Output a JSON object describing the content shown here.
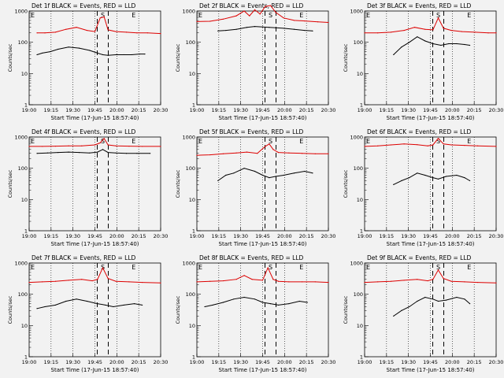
{
  "chart_data": [
    {
      "type": "line",
      "title": "Det 1f BLACK = Events, RED = LLD",
      "xlabel": "Start Time (17-Jun-15 18:57:40)",
      "ylabel": "Counts/sec",
      "yscale": "log",
      "ylim": [
        1,
        1000
      ],
      "x_ticks": [
        "19:00",
        "19:15",
        "19:30",
        "19:45",
        "20:00",
        "20:15",
        "20:30"
      ],
      "y_ticks": [
        "1",
        "10",
        "100",
        "1000"
      ],
      "markers": {
        "left": "E",
        "mid": "S",
        "right": "E"
      },
      "series": [
        {
          "color": "#000000",
          "x": [
            0.06,
            0.1,
            0.16,
            0.22,
            0.3,
            0.38,
            0.46,
            0.52,
            0.56,
            0.6,
            0.66,
            0.72,
            0.78,
            0.84,
            0.88
          ],
          "y": [
            40,
            45,
            50,
            60,
            70,
            65,
            55,
            45,
            40,
            38,
            40,
            40,
            40,
            42,
            42
          ]
        },
        {
          "color": "#dd0000",
          "x": [
            0.06,
            0.12,
            0.2,
            0.28,
            0.36,
            0.44,
            0.5,
            0.54,
            0.57,
            0.6,
            0.66,
            0.74,
            0.82,
            0.9,
            1.0
          ],
          "y": [
            200,
            200,
            210,
            260,
            300,
            240,
            220,
            600,
            650,
            250,
            220,
            210,
            200,
            200,
            190
          ]
        }
      ]
    },
    {
      "type": "line",
      "title": "Det 2f BLACK = Events, RED = LLD",
      "xlabel": "Start Time (17-Jun-15 18:57:40)",
      "ylabel": "Counts/sec",
      "yscale": "log",
      "ylim": [
        1,
        1000
      ],
      "x_ticks": [
        "19:00",
        "19:15",
        "19:30",
        "19:45",
        "20:00",
        "20:15",
        "20:30"
      ],
      "y_ticks": [
        "1",
        "10",
        "100",
        "1000"
      ],
      "markers": {
        "left": "E",
        "mid": "S",
        "right": "E"
      },
      "series": [
        {
          "color": "#000000",
          "x": [
            0.16,
            0.22,
            0.3,
            0.38,
            0.44,
            0.5,
            0.55,
            0.6,
            0.66,
            0.74,
            0.82,
            0.88
          ],
          "y": [
            230,
            240,
            260,
            300,
            320,
            310,
            300,
            290,
            280,
            260,
            240,
            230
          ]
        },
        {
          "color": "#dd0000",
          "x": [
            0.0,
            0.1,
            0.2,
            0.3,
            0.36,
            0.4,
            0.44,
            0.48,
            0.52,
            0.56,
            0.6,
            0.66,
            0.74,
            0.82,
            0.92,
            1.0
          ],
          "y": [
            460,
            470,
            550,
            700,
            1000,
            700,
            1100,
            800,
            1400,
            1500,
            900,
            600,
            500,
            480,
            450,
            430
          ]
        }
      ]
    },
    {
      "type": "line",
      "title": "Det 3f BLACK = Events, RED = LLD",
      "xlabel": "Start Time (17-Jun-15 18:57:40)",
      "ylabel": "Counts/sec",
      "yscale": "log",
      "ylim": [
        1,
        1000
      ],
      "x_ticks": [
        "19:00",
        "19:15",
        "19:30",
        "19:45",
        "20:00",
        "20:15",
        "20:30"
      ],
      "y_ticks": [
        "1",
        "10",
        "100",
        "1000"
      ],
      "markers": {
        "left": "E",
        "mid": "S",
        "right": "E"
      },
      "series": [
        {
          "color": "#000000",
          "x": [
            0.22,
            0.28,
            0.34,
            0.4,
            0.46,
            0.52,
            0.58,
            0.64,
            0.7,
            0.76,
            0.8
          ],
          "y": [
            40,
            70,
            100,
            150,
            110,
            90,
            80,
            90,
            90,
            85,
            80
          ]
        },
        {
          "color": "#dd0000",
          "x": [
            0.0,
            0.1,
            0.2,
            0.3,
            0.38,
            0.46,
            0.52,
            0.56,
            0.6,
            0.66,
            0.74,
            0.84,
            0.94,
            1.0
          ],
          "y": [
            200,
            200,
            210,
            240,
            300,
            260,
            250,
            600,
            280,
            240,
            220,
            210,
            200,
            200
          ]
        }
      ]
    },
    {
      "type": "line",
      "title": "Det 4f BLACK = Events, RED = LLD",
      "xlabel": "Start Time (17-Jun-15 18:57:40)",
      "ylabel": "Counts/sec",
      "yscale": "log",
      "ylim": [
        1,
        1000
      ],
      "x_ticks": [
        "19:00",
        "19:15",
        "19:30",
        "19:45",
        "20:00",
        "20:15",
        "20:30"
      ],
      "y_ticks": [
        "1",
        "10",
        "100",
        "1000"
      ],
      "markers": {
        "left": "E",
        "mid": "S",
        "right": "E"
      },
      "series": [
        {
          "color": "#000000",
          "x": [
            0.06,
            0.14,
            0.22,
            0.3,
            0.38,
            0.46,
            0.52,
            0.56,
            0.6,
            0.66,
            0.74,
            0.82,
            0.92
          ],
          "y": [
            300,
            310,
            320,
            330,
            320,
            310,
            330,
            400,
            320,
            310,
            300,
            300,
            300
          ]
        },
        {
          "color": "#dd0000",
          "x": [
            0.0,
            0.1,
            0.2,
            0.3,
            0.4,
            0.5,
            0.54,
            0.57,
            0.6,
            0.66,
            0.76,
            0.86,
            1.0
          ],
          "y": [
            500,
            500,
            510,
            520,
            520,
            560,
            650,
            900,
            560,
            520,
            510,
            500,
            500
          ]
        }
      ]
    },
    {
      "type": "line",
      "title": "Det 5f BLACK = Events, RED = LLD",
      "xlabel": "Start Time (17-Jun-15 18:57:40)",
      "ylabel": "Counts/sec",
      "yscale": "log",
      "ylim": [
        1,
        1000
      ],
      "x_ticks": [
        "19:00",
        "19:15",
        "19:30",
        "19:45",
        "20:00",
        "20:15",
        "20:30"
      ],
      "y_ticks": [
        "1",
        "10",
        "100",
        "1000"
      ],
      "markers": {
        "left": "E",
        "mid": "S",
        "right": "E"
      },
      "series": [
        {
          "color": "#000000",
          "x": [
            0.16,
            0.22,
            0.28,
            0.36,
            0.44,
            0.5,
            0.55,
            0.6,
            0.66,
            0.74,
            0.82,
            0.88
          ],
          "y": [
            40,
            60,
            70,
            100,
            80,
            60,
            50,
            55,
            60,
            70,
            80,
            70
          ]
        },
        {
          "color": "#dd0000",
          "x": [
            0.0,
            0.1,
            0.2,
            0.3,
            0.38,
            0.46,
            0.52,
            0.55,
            0.58,
            0.62,
            0.7,
            0.8,
            0.9,
            1.0
          ],
          "y": [
            260,
            270,
            290,
            310,
            330,
            300,
            500,
            600,
            400,
            320,
            310,
            300,
            290,
            290
          ]
        }
      ]
    },
    {
      "type": "line",
      "title": "Det 6f BLACK = Events, RED = LLD",
      "xlabel": "Start Time (17-Jun-15 18:57:40)",
      "ylabel": "Counts/sec",
      "yscale": "log",
      "ylim": [
        1,
        1000
      ],
      "x_ticks": [
        "19:00",
        "19:15",
        "19:30",
        "19:45",
        "20:00",
        "20:15",
        "20:30"
      ],
      "y_ticks": [
        "1",
        "10",
        "100",
        "1000"
      ],
      "markers": {
        "left": "E",
        "mid": "S",
        "right": "E"
      },
      "series": [
        {
          "color": "#000000",
          "x": [
            0.22,
            0.28,
            0.34,
            0.4,
            0.46,
            0.52,
            0.56,
            0.62,
            0.7,
            0.76,
            0.8
          ],
          "y": [
            30,
            40,
            50,
            70,
            60,
            50,
            45,
            55,
            60,
            50,
            40
          ]
        },
        {
          "color": "#dd0000",
          "x": [
            0.0,
            0.1,
            0.2,
            0.3,
            0.4,
            0.48,
            0.52,
            0.56,
            0.6,
            0.66,
            0.76,
            0.86,
            1.0
          ],
          "y": [
            500,
            520,
            560,
            600,
            570,
            520,
            560,
            900,
            600,
            560,
            540,
            520,
            500
          ]
        }
      ]
    },
    {
      "type": "line",
      "title": "Det 7f BLACK = Events, RED = LLD",
      "xlabel": "Start Time (17-Jun-15 18:57:40)",
      "ylabel": "Counts/sec",
      "yscale": "log",
      "ylim": [
        1,
        1000
      ],
      "x_ticks": [
        "19:00",
        "19:15",
        "19:30",
        "19:45",
        "20:00",
        "20:15",
        "20:30"
      ],
      "y_ticks": [
        "1",
        "10",
        "100",
        "1000"
      ],
      "markers": {
        "left": "E",
        "mid": "S",
        "right": "E"
      },
      "series": [
        {
          "color": "#000000",
          "x": [
            0.06,
            0.12,
            0.2,
            0.28,
            0.36,
            0.44,
            0.52,
            0.58,
            0.64,
            0.72,
            0.8,
            0.86
          ],
          "y": [
            35,
            40,
            45,
            60,
            70,
            60,
            50,
            45,
            40,
            45,
            50,
            45
          ]
        },
        {
          "color": "#dd0000",
          "x": [
            0.0,
            0.1,
            0.2,
            0.3,
            0.4,
            0.48,
            0.52,
            0.56,
            0.6,
            0.66,
            0.76,
            0.86,
            1.0
          ],
          "y": [
            240,
            250,
            260,
            280,
            300,
            270,
            300,
            700,
            320,
            260,
            250,
            240,
            230
          ]
        }
      ]
    },
    {
      "type": "line",
      "title": "Det 8f BLACK = Events, RED = LLD",
      "xlabel": "Start Time (17-Jun-15 18:57:40)",
      "ylabel": "Counts/sec",
      "yscale": "log",
      "ylim": [
        1,
        1000
      ],
      "x_ticks": [
        "19:00",
        "19:15",
        "19:30",
        "19:45",
        "20:00",
        "20:15",
        "20:30"
      ],
      "y_ticks": [
        "1",
        "10",
        "100",
        "1000"
      ],
      "markers": {
        "left": "E",
        "mid": "S",
        "right": "E"
      },
      "series": [
        {
          "color": "#000000",
          "x": [
            0.06,
            0.12,
            0.2,
            0.28,
            0.36,
            0.44,
            0.5,
            0.56,
            0.62,
            0.7,
            0.78,
            0.84
          ],
          "y": [
            40,
            45,
            55,
            70,
            80,
            70,
            55,
            50,
            45,
            50,
            60,
            55
          ]
        },
        {
          "color": "#dd0000",
          "x": [
            0.0,
            0.1,
            0.2,
            0.3,
            0.36,
            0.42,
            0.5,
            0.54,
            0.58,
            0.62,
            0.7,
            0.8,
            0.9,
            1.0
          ],
          "y": [
            250,
            260,
            270,
            300,
            400,
            300,
            280,
            700,
            300,
            260,
            250,
            250,
            250,
            240
          ]
        }
      ]
    },
    {
      "type": "line",
      "title": "Det 9f BLACK = Events, RED = LLD",
      "xlabel": "Start Time (17-Jun-15 18:57:40)",
      "ylabel": "Counts/sec",
      "yscale": "log",
      "ylim": [
        1,
        1000
      ],
      "x_ticks": [
        "19:00",
        "19:15",
        "19:30",
        "19:45",
        "20:00",
        "20:15",
        "20:30"
      ],
      "y_ticks": [
        "1",
        "10",
        "100",
        "1000"
      ],
      "markers": {
        "left": "E",
        "mid": "S",
        "right": "E"
      },
      "series": [
        {
          "color": "#000000",
          "x": [
            0.22,
            0.28,
            0.34,
            0.4,
            0.46,
            0.52,
            0.56,
            0.62,
            0.7,
            0.76,
            0.8
          ],
          "y": [
            20,
            30,
            40,
            60,
            80,
            70,
            60,
            65,
            80,
            70,
            50
          ]
        },
        {
          "color": "#dd0000",
          "x": [
            0.0,
            0.1,
            0.2,
            0.3,
            0.4,
            0.48,
            0.52,
            0.56,
            0.6,
            0.66,
            0.76,
            0.86,
            1.0
          ],
          "y": [
            240,
            250,
            260,
            280,
            300,
            270,
            300,
            600,
            320,
            260,
            250,
            240,
            230
          ]
        }
      ]
    }
  ]
}
